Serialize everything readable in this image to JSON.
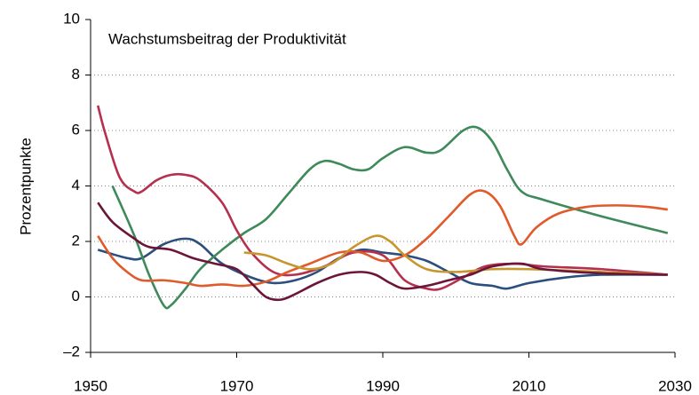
{
  "chart_data": {
    "type": "line",
    "title": "Wachstumsbeitrag der Produktivität",
    "y_label": "Prozentpunkte",
    "xlim": [
      1950,
      2030
    ],
    "xticks": [
      1950,
      1970,
      1990,
      2010,
      2030
    ],
    "ylim": [
      -2,
      10
    ],
    "yticks": [
      {
        "value": -2,
        "label": "–2"
      },
      0,
      2,
      4,
      6,
      8,
      10
    ],
    "grid": true,
    "series": [
      {
        "color": "#2b4f7e",
        "x": [
          1951,
          1955,
          1957,
          1960,
          1963,
          1965,
          1968,
          1972,
          1975,
          1978,
          1981,
          1984,
          1987,
          1990,
          1993,
          1996,
          1999,
          2002,
          2005,
          2007,
          2010,
          2015,
          2020,
          2029
        ],
        "values": [
          1.7,
          1.4,
          1.4,
          1.9,
          2.1,
          1.9,
          1.2,
          0.7,
          0.5,
          0.6,
          0.9,
          1.4,
          1.7,
          1.6,
          1.5,
          1.3,
          0.9,
          0.5,
          0.4,
          0.3,
          0.5,
          0.7,
          0.8,
          0.8
        ]
      },
      {
        "color": "#3e8a5a",
        "x": [
          1953,
          1956,
          1958,
          1960,
          1961,
          1963,
          1965,
          1968,
          1971,
          1974,
          1977,
          1980,
          1982,
          1984,
          1986,
          1988,
          1990,
          1993,
          1996,
          1998,
          2001,
          2003,
          2005,
          2007,
          2009,
          2012,
          2020,
          2029
        ],
        "values": [
          4.0,
          2.2,
          0.8,
          -0.3,
          -0.3,
          0.3,
          1.0,
          1.7,
          2.3,
          2.8,
          3.7,
          4.6,
          4.9,
          4.8,
          4.6,
          4.6,
          5.0,
          5.4,
          5.2,
          5.3,
          6.0,
          6.1,
          5.6,
          4.6,
          3.8,
          3.5,
          2.9,
          2.3
        ]
      },
      {
        "color": "#b5304f",
        "x": [
          1951,
          1952,
          1954,
          1956,
          1957,
          1959,
          1961,
          1963,
          1965,
          1968,
          1970,
          1972,
          1975,
          1978,
          1982,
          1986,
          1990,
          1993,
          1996,
          1998,
          2001,
          2004,
          2008,
          2012,
          2020,
          2029
        ],
        "values": [
          6.9,
          5.9,
          4.3,
          3.8,
          3.8,
          4.2,
          4.4,
          4.4,
          4.2,
          3.4,
          2.4,
          1.6,
          0.9,
          0.8,
          1.1,
          1.6,
          1.5,
          0.6,
          0.3,
          0.3,
          0.7,
          1.1,
          1.2,
          1.1,
          1.0,
          0.8
        ]
      },
      {
        "color": "#e05a2b",
        "x": [
          1951,
          1953,
          1955,
          1957,
          1960,
          1963,
          1965,
          1968,
          1971,
          1974,
          1977,
          1980,
          1984,
          1987,
          1990,
          1993,
          1996,
          1999,
          2002,
          2004,
          2006,
          2008,
          2009,
          2011,
          2014,
          2018,
          2022,
          2026,
          2029
        ],
        "values": [
          2.2,
          1.4,
          0.9,
          0.6,
          0.6,
          0.5,
          0.4,
          0.45,
          0.4,
          0.55,
          0.9,
          1.2,
          1.6,
          1.6,
          1.3,
          1.5,
          2.1,
          2.9,
          3.7,
          3.8,
          3.3,
          2.2,
          1.9,
          2.5,
          3.0,
          3.25,
          3.3,
          3.25,
          3.15
        ]
      },
      {
        "color": "#c8962e",
        "x": [
          1971,
          1974,
          1977,
          1980,
          1983,
          1986,
          1989,
          1991,
          1993,
          1996,
          2000,
          2005,
          2010,
          2020,
          2029
        ],
        "values": [
          1.6,
          1.5,
          1.2,
          1.0,
          1.2,
          1.8,
          2.2,
          2.0,
          1.5,
          1.0,
          0.9,
          1.0,
          1.0,
          0.9,
          0.8
        ]
      },
      {
        "color": "#6b1538",
        "x": [
          1951,
          1953,
          1956,
          1958,
          1961,
          1964,
          1967,
          1970,
          1972,
          1974,
          1976,
          1978,
          1981,
          1984,
          1987,
          1989,
          1991,
          1993,
          1996,
          1999,
          2002,
          2005,
          2009,
          2012,
          2020,
          2029
        ],
        "values": [
          3.4,
          2.7,
          2.1,
          1.8,
          1.7,
          1.4,
          1.2,
          1.0,
          0.5,
          0.0,
          -0.1,
          0.1,
          0.5,
          0.8,
          0.9,
          0.8,
          0.5,
          0.3,
          0.4,
          0.6,
          0.8,
          1.1,
          1.2,
          1.0,
          0.85,
          0.8
        ]
      }
    ]
  }
}
